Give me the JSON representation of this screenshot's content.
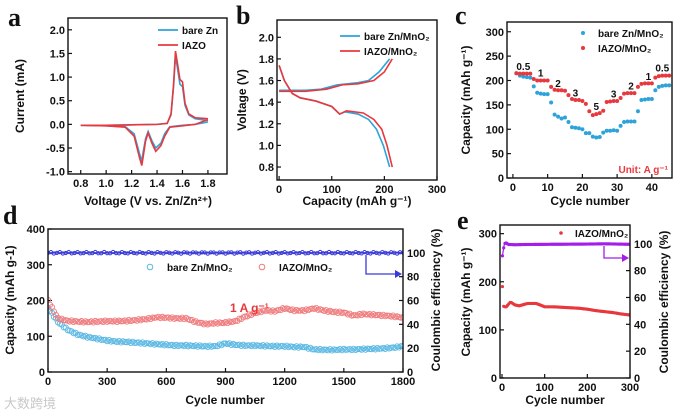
{
  "watermark": "大数跨境",
  "colors": {
    "bare": "#2ea3d9",
    "iazo": "#e8383d",
    "bare_marker": "#5ab8e3",
    "iazo_marker": "#ef7b7d",
    "ce_d": "#3a3ad8",
    "ce_e": "#a41ee8"
  },
  "chart_data": [
    {
      "panel": "a",
      "type": "line",
      "xlabel": "Voltage (V vs. Zn/Zn²⁺)",
      "ylabel": "Current (mA)",
      "xlim": [
        0.7,
        1.95
      ],
      "ylim": [
        -1.05,
        2.25
      ],
      "xticks": [
        0.8,
        1.0,
        1.2,
        1.4,
        1.6,
        1.8
      ],
      "yticks": [
        -1.0,
        -0.5,
        0.0,
        0.5,
        1.0,
        1.5,
        2.0
      ],
      "legend": "top-right",
      "series": [
        {
          "name": "bare Zn",
          "color_key": "bare",
          "x": [
            1.8,
            1.7,
            1.6,
            1.5,
            1.46,
            1.43,
            1.39,
            1.36,
            1.33,
            1.31,
            1.29,
            1.28,
            1.26,
            1.22,
            1.15,
            1.0,
            0.8,
            1.0,
            1.2,
            1.4,
            1.48,
            1.51,
            1.53,
            1.545,
            1.56,
            1.58,
            1.6,
            1.62,
            1.65,
            1.7,
            1.8
          ],
          "y": [
            0.05,
            0.0,
            -0.02,
            -0.05,
            -0.2,
            -0.4,
            -0.5,
            -0.35,
            -0.15,
            -0.3,
            -0.6,
            -0.78,
            -0.6,
            -0.2,
            -0.05,
            -0.03,
            -0.02,
            -0.02,
            -0.01,
            0.0,
            0.02,
            0.2,
            0.8,
            1.45,
            1.2,
            0.85,
            0.8,
            0.4,
            0.2,
            0.12,
            0.08
          ]
        },
        {
          "name": "IAZO",
          "color_key": "iazo",
          "x": [
            1.8,
            1.7,
            1.6,
            1.5,
            1.46,
            1.43,
            1.39,
            1.36,
            1.33,
            1.31,
            1.29,
            1.28,
            1.26,
            1.22,
            1.15,
            1.0,
            0.8,
            1.0,
            1.2,
            1.4,
            1.48,
            1.51,
            1.53,
            1.545,
            1.56,
            1.58,
            1.6,
            1.62,
            1.65,
            1.7,
            1.8
          ],
          "y": [
            0.1,
            0.0,
            -0.03,
            -0.06,
            -0.25,
            -0.45,
            -0.57,
            -0.4,
            -0.18,
            -0.35,
            -0.7,
            -0.87,
            -0.68,
            -0.25,
            -0.06,
            -0.03,
            -0.02,
            -0.02,
            -0.01,
            0.0,
            0.02,
            0.22,
            0.85,
            1.55,
            1.3,
            0.95,
            0.9,
            0.45,
            0.22,
            0.14,
            0.12
          ]
        }
      ]
    },
    {
      "panel": "b",
      "type": "line",
      "xlabel": "Capacity (mAh g⁻¹)",
      "ylabel": "Voltage (V)",
      "xlim": [
        -4,
        300
      ],
      "ylim": [
        0.68,
        2.16
      ],
      "xticks": [
        0,
        100,
        200,
        300
      ],
      "yticks": [
        0.8,
        1.0,
        1.2,
        1.4,
        1.6,
        1.8,
        2.0
      ],
      "legend": "top-right",
      "series": [
        {
          "name": "bare Zn/MnO₂",
          "color_key": "bare",
          "segments": [
            {
              "x": [
                0,
                50,
                80,
                110,
                150,
                170,
                190,
                210
              ],
              "y": [
                1.51,
                1.51,
                1.52,
                1.56,
                1.58,
                1.6,
                1.68,
                1.8
              ]
            },
            {
              "x": [
                0,
                10,
                25,
                40,
                70,
                100,
                115,
                125,
                150,
                170,
                185,
                198,
                210
              ],
              "y": [
                1.74,
                1.6,
                1.48,
                1.44,
                1.41,
                1.36,
                1.29,
                1.31,
                1.29,
                1.24,
                1.15,
                1.0,
                0.8
              ]
            }
          ]
        },
        {
          "name": "IAZO/MnO₂",
          "color_key": "iazo",
          "segments": [
            {
              "x": [
                0,
                50,
                90,
                120,
                150,
                180,
                200,
                215
              ],
              "y": [
                1.5,
                1.5,
                1.52,
                1.56,
                1.57,
                1.6,
                1.68,
                1.8
              ]
            },
            {
              "x": [
                0,
                10,
                25,
                40,
                70,
                100,
                115,
                128,
                160,
                180,
                195,
                205,
                215
              ],
              "y": [
                1.74,
                1.6,
                1.48,
                1.44,
                1.41,
                1.36,
                1.29,
                1.32,
                1.3,
                1.24,
                1.15,
                1.0,
                0.8
              ]
            }
          ]
        }
      ]
    },
    {
      "panel": "c",
      "type": "scatter",
      "xlabel": "Cycle number",
      "ylabel": "Capacity (mAh g⁻¹)",
      "xlim": [
        -1.7,
        45.8
      ],
      "ylim": [
        0,
        320
      ],
      "xticks": [
        0,
        10,
        20,
        30,
        40
      ],
      "yticks": [
        0,
        50,
        100,
        150,
        200,
        250,
        300
      ],
      "legend": "top-right",
      "unit_note": "Unit: A g⁻¹",
      "rate_labels": [
        {
          "text": "0.5",
          "x": 3,
          "y": 222
        },
        {
          "text": "1",
          "x": 8,
          "y": 208
        },
        {
          "text": "2",
          "x": 13,
          "y": 187
        },
        {
          "text": "3",
          "x": 18,
          "y": 167
        },
        {
          "text": "5",
          "x": 24,
          "y": 140
        },
        {
          "text": "3",
          "x": 29,
          "y": 165
        },
        {
          "text": "2",
          "x": 34,
          "y": 182
        },
        {
          "text": "1",
          "x": 39,
          "y": 201
        },
        {
          "text": "0.5",
          "x": 43,
          "y": 218
        }
      ],
      "series": [
        {
          "name": "bare Zn/MnO₂",
          "color_key": "bare",
          "y": [
            215,
            210,
            208,
            207,
            206,
            188,
            175,
            173,
            172,
            172,
            155,
            130,
            126,
            122,
            124,
            115,
            104,
            103,
            102,
            100,
            92,
            92,
            85,
            83,
            84,
            93,
            97,
            97,
            98,
            97,
            107,
            115,
            116,
            116,
            116,
            137,
            160,
            161,
            162,
            162,
            180,
            187,
            189,
            190,
            190
          ]
        },
        {
          "name": "IAZO/MnO₂",
          "color_key": "iazo",
          "y": [
            215,
            214,
            214,
            214,
            214,
            203,
            200,
            200,
            200,
            200,
            187,
            181,
            180,
            180,
            179,
            170,
            162,
            160,
            160,
            158,
            152,
            137,
            129,
            131,
            133,
            138,
            156,
            157,
            158,
            158,
            164,
            173,
            174,
            174,
            174,
            187,
            193,
            194,
            194,
            194,
            206,
            209,
            210,
            210,
            210
          ]
        }
      ]
    },
    {
      "panel": "d",
      "type": "scatter",
      "xlabel": "Cycle number",
      "ylabel": "Capacity (mAh g-1)",
      "y2label": "Coulombic efficiency (%)",
      "xlim": [
        0,
        1800
      ],
      "ylim": [
        0,
        400
      ],
      "y2lim": [
        0,
        120
      ],
      "xticks": [
        0,
        300,
        600,
        900,
        1200,
        1500,
        1800
      ],
      "yticks": [
        0,
        100,
        200,
        300,
        400
      ],
      "y2ticks": [
        0,
        20,
        40,
        60,
        80,
        100
      ],
      "legend": "top-center",
      "annotation": "1 A g⁻¹",
      "x": [
        0,
        50,
        100,
        150,
        200,
        250,
        300,
        350,
        400,
        450,
        500,
        550,
        600,
        650,
        700,
        750,
        800,
        850,
        900,
        950,
        1000,
        1050,
        1100,
        1150,
        1200,
        1250,
        1300,
        1350,
        1400,
        1450,
        1500,
        1550,
        1600,
        1650,
        1700,
        1750,
        1800
      ],
      "series": [
        {
          "name": "bare Zn/MnO₂",
          "color_key": "bare_marker",
          "y": [
            180,
            140,
            118,
            105,
            98,
            93,
            88,
            85,
            84,
            82,
            80,
            78,
            76,
            74,
            74,
            73,
            72,
            72,
            80,
            76,
            74,
            74,
            73,
            72,
            72,
            70,
            70,
            63,
            62,
            62,
            63,
            63,
            64,
            65,
            66,
            68,
            72
          ]
        },
        {
          "name": "IAZO/MnO₂",
          "color_key": "iazo_marker",
          "y": [
            200,
            150,
            143,
            141,
            140,
            141,
            142,
            142,
            143,
            145,
            148,
            153,
            152,
            150,
            150,
            140,
            134,
            137,
            138,
            142,
            155,
            165,
            172,
            170,
            178,
            172,
            172,
            178,
            172,
            168,
            166,
            158,
            162,
            160,
            158,
            156,
            152
          ]
        },
        {
          "name": "Coulombic efficiency",
          "color_key": "ce_d",
          "axis": "y2",
          "y_const": 100
        }
      ]
    },
    {
      "panel": "e",
      "type": "scatter",
      "xlabel": "Cycle number",
      "ylabel": "Capacity (mAh g⁻¹)",
      "y2label": "Coulombic efficiency (%)",
      "xlim": [
        -4.7,
        300
      ],
      "ylim": [
        0,
        318
      ],
      "y2lim": [
        0,
        114
      ],
      "xticks": [
        0,
        100,
        200,
        300
      ],
      "yticks": [
        0,
        100,
        200,
        300
      ],
      "y2ticks": [
        0,
        20,
        40,
        60,
        80,
        100
      ],
      "legend": "top-right",
      "series": [
        {
          "name": "IAZO/MnO₂",
          "color_key": "iazo",
          "x": [
            1,
            2,
            3,
            5,
            10,
            20,
            30,
            40,
            60,
            80,
            100,
            120,
            140,
            160,
            180,
            200,
            220,
            240,
            260,
            280,
            300
          ],
          "y": [
            190,
            168,
            150,
            148,
            148,
            158,
            152,
            150,
            155,
            155,
            148,
            148,
            147,
            146,
            145,
            143,
            140,
            138,
            136,
            133,
            131
          ]
        },
        {
          "name": "Coulombic efficiency",
          "color_key": "ce_e",
          "axis": "y2",
          "x": [
            1,
            3,
            5,
            8,
            15,
            30,
            60,
            100,
            150,
            200,
            240,
            300
          ],
          "y": [
            91,
            95,
            99,
            101,
            99.5,
            99.3,
            99.5,
            99.6,
            99.7,
            99.8,
            100,
            99.6
          ]
        }
      ]
    }
  ]
}
